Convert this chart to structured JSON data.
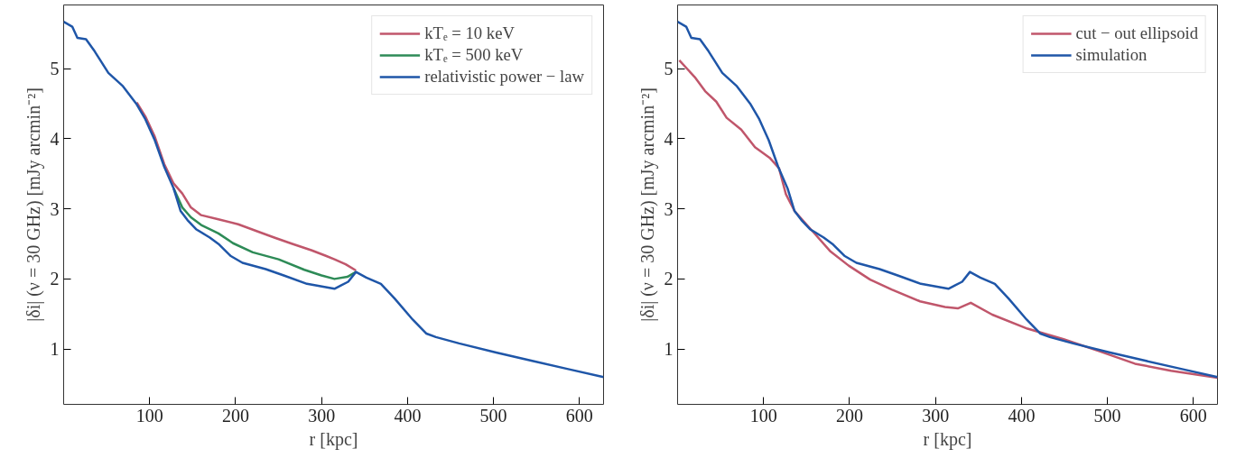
{
  "chart_data": [
    {
      "type": "line",
      "xlabel": "r [kpc]",
      "ylabel": "|δi| (ν = 30 GHz) [mJy arcmin⁻²]",
      "xlim": [
        0,
        628
      ],
      "ylim": [
        0.21,
        5.91
      ],
      "xticks": [
        100,
        200,
        300,
        400,
        500,
        600
      ],
      "yticks": [
        1,
        2,
        3,
        4,
        5
      ],
      "grid": false,
      "legend": "top right",
      "line_style": "solid",
      "marker": "none",
      "series": [
        {
          "name": "kTₑ = 10 keV",
          "color": "#c0566b",
          "x": [
            85,
            95,
            106,
            117,
            128,
            138,
            148,
            160,
            180,
            203,
            225,
            245,
            266,
            288,
            305,
            315,
            328,
            340
          ],
          "values": [
            4.52,
            4.32,
            4.03,
            3.64,
            3.36,
            3.22,
            3.02,
            2.91,
            2.85,
            2.78,
            2.68,
            2.59,
            2.5,
            2.41,
            2.33,
            2.28,
            2.21,
            2.12
          ]
        },
        {
          "name": "kTₑ = 500 keV",
          "color": "#2e8b57",
          "x": [
            128,
            138,
            148,
            160,
            180,
            197,
            220,
            250,
            280,
            300,
            315,
            330,
            340
          ],
          "values": [
            3.29,
            3.02,
            2.88,
            2.77,
            2.65,
            2.51,
            2.38,
            2.28,
            2.13,
            2.05,
            2.0,
            2.03,
            2.1
          ]
        },
        {
          "name": "relativistic power − law",
          "color": "#1f56a8",
          "x": [
            0,
            10,
            16,
            26,
            36,
            52,
            69,
            85,
            95,
            106,
            117,
            128,
            136,
            144,
            154,
            170,
            181,
            194,
            208,
            235,
            256,
            283,
            315,
            323,
            331,
            340,
            352,
            369,
            385,
            406,
            422,
            433,
            460,
            503,
            545,
            588,
            628
          ],
          "values": [
            5.67,
            5.6,
            5.44,
            5.42,
            5.25,
            4.94,
            4.75,
            4.49,
            4.28,
            3.98,
            3.6,
            3.29,
            2.97,
            2.84,
            2.71,
            2.59,
            2.49,
            2.33,
            2.23,
            2.14,
            2.05,
            1.93,
            1.86,
            1.91,
            1.96,
            2.1,
            2.02,
            1.93,
            1.72,
            1.42,
            1.22,
            1.17,
            1.08,
            0.95,
            0.83,
            0.71,
            0.6
          ]
        }
      ]
    },
    {
      "type": "line",
      "xlabel": "r [kpc]",
      "ylabel": "|δi| (ν = 30 GHz) [mJy arcmin⁻²]",
      "xlim": [
        0,
        628
      ],
      "ylim": [
        0.21,
        5.91
      ],
      "xticks": [
        100,
        200,
        300,
        400,
        500,
        600
      ],
      "yticks": [
        1,
        2,
        3,
        4,
        5
      ],
      "grid": false,
      "legend": "top right",
      "line_style": "solid",
      "marker": "none",
      "series": [
        {
          "name": "cut − out ellipsoid",
          "color": "#c0566b",
          "x": [
            2,
            20,
            32,
            45,
            57,
            74,
            90,
            107,
            118,
            126,
            136,
            157,
            178,
            199,
            224,
            249,
            282,
            311,
            326,
            341,
            366,
            407,
            449,
            490,
            532,
            574,
            628
          ],
          "values": [
            5.12,
            4.88,
            4.68,
            4.53,
            4.3,
            4.13,
            3.88,
            3.73,
            3.58,
            3.21,
            2.97,
            2.68,
            2.39,
            2.19,
            1.99,
            1.85,
            1.68,
            1.6,
            1.58,
            1.66,
            1.49,
            1.29,
            1.14,
            0.97,
            0.79,
            0.69,
            0.59
          ]
        },
        {
          "name": "simulation",
          "color": "#1f56a8",
          "x": [
            0,
            10,
            16,
            26,
            36,
            52,
            69,
            85,
            95,
            106,
            117,
            128,
            136,
            144,
            154,
            170,
            181,
            194,
            208,
            235,
            256,
            283,
            315,
            323,
            331,
            340,
            352,
            369,
            385,
            406,
            422,
            433,
            460,
            503,
            545,
            588,
            628
          ],
          "values": [
            5.67,
            5.6,
            5.44,
            5.42,
            5.25,
            4.94,
            4.75,
            4.49,
            4.28,
            3.98,
            3.6,
            3.29,
            2.97,
            2.84,
            2.71,
            2.59,
            2.49,
            2.33,
            2.23,
            2.14,
            2.05,
            1.93,
            1.86,
            1.91,
            1.96,
            2.1,
            2.02,
            1.93,
            1.72,
            1.42,
            1.22,
            1.17,
            1.08,
            0.95,
            0.83,
            0.71,
            0.6
          ]
        }
      ]
    }
  ]
}
